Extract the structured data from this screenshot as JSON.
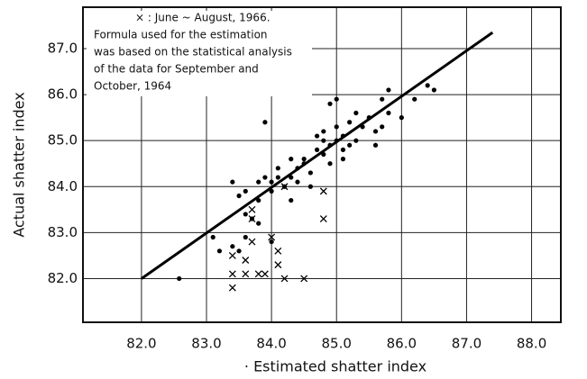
{
  "chart_data": {
    "type": "scatter",
    "xlabel": "· Estimated shatter index",
    "ylabel": "Actual shatter index",
    "annotation": [
      "× : June ~ August, 1966.",
      "Formula used for the estimation",
      "was based on the statistical analysis",
      "of the data for September and",
      "October, 1964"
    ],
    "xlim": [
      81.1,
      88.45
    ],
    "ylim": [
      81.05,
      87.9
    ],
    "xticks": [
      {
        "value": 82,
        "label": "82.0"
      },
      {
        "value": 83,
        "label": "83.0"
      },
      {
        "value": 84,
        "label": "84.0"
      },
      {
        "value": 85,
        "label": "85.0"
      },
      {
        "value": 86,
        "label": "86.0"
      },
      {
        "value": 87,
        "label": "87.0"
      },
      {
        "value": 88,
        "label": "88.0"
      }
    ],
    "yticks": [
      {
        "value": 82,
        "label": "82.0"
      },
      {
        "value": 83,
        "label": "83.0"
      },
      {
        "value": 84,
        "label": "84.0"
      },
      {
        "value": 85,
        "label": "85.0"
      },
      {
        "value": 86,
        "label": "86.0"
      },
      {
        "value": 87,
        "label": "87.0"
      }
    ],
    "grid": true,
    "line": {
      "x": [
        82,
        87.4
      ],
      "y": [
        82,
        87.35
      ],
      "color": "#000000"
    },
    "series": [
      {
        "marker": "dot",
        "color": "#000000",
        "x": [
          82.58,
          83.1,
          83.2,
          83.4,
          83.5,
          83.6,
          83.5,
          83.4,
          83.6,
          83.8,
          83.7,
          83.8,
          83.9,
          84.0,
          83.9,
          84.0,
          84.2,
          84.3,
          84.1,
          84.3,
          84.4,
          84.5,
          84.6,
          84.5,
          84.7,
          84.7,
          84.8,
          84.8,
          84.9,
          85.0,
          85.0,
          85.1,
          85.1,
          85.2,
          85.2,
          85.3,
          85.4,
          85.5,
          85.6,
          85.6,
          85.7,
          85.8,
          85.8,
          86.0,
          86.2,
          86.4,
          86.5,
          84.9,
          85.0,
          84.6,
          84.1,
          83.8,
          84.0,
          85.1,
          84.9,
          84.8,
          85.3,
          85.7,
          84.4,
          83.6,
          84.3
        ],
        "values": [
          82.0,
          82.9,
          82.6,
          82.7,
          82.6,
          82.9,
          83.8,
          84.1,
          83.9,
          84.1,
          83.3,
          83.7,
          84.2,
          84.1,
          85.4,
          83.9,
          84.0,
          83.7,
          84.4,
          84.2,
          84.4,
          84.5,
          84.3,
          84.6,
          84.8,
          85.1,
          85.0,
          84.7,
          84.9,
          85.0,
          85.3,
          85.1,
          84.8,
          85.4,
          84.9,
          85.6,
          85.3,
          85.5,
          85.2,
          84.9,
          85.9,
          86.1,
          85.6,
          85.5,
          85.9,
          86.2,
          86.1,
          85.8,
          85.9,
          84.0,
          84.2,
          83.2,
          82.8,
          84.6,
          84.5,
          85.2,
          85.0,
          85.3,
          84.1,
          83.4,
          84.6
        ]
      },
      {
        "marker": "cross",
        "color": "#000000",
        "x": [
          83.4,
          83.4,
          83.4,
          83.6,
          83.6,
          83.7,
          83.7,
          83.7,
          83.8,
          83.9,
          84.0,
          84.1,
          84.1,
          84.2,
          84.5,
          84.2,
          84.8,
          84.8
        ],
        "values": [
          82.5,
          82.1,
          81.8,
          82.1,
          82.4,
          82.8,
          83.5,
          83.3,
          82.1,
          82.1,
          82.9,
          82.6,
          82.3,
          82.0,
          82.0,
          84.0,
          83.9,
          83.3
        ]
      }
    ]
  }
}
